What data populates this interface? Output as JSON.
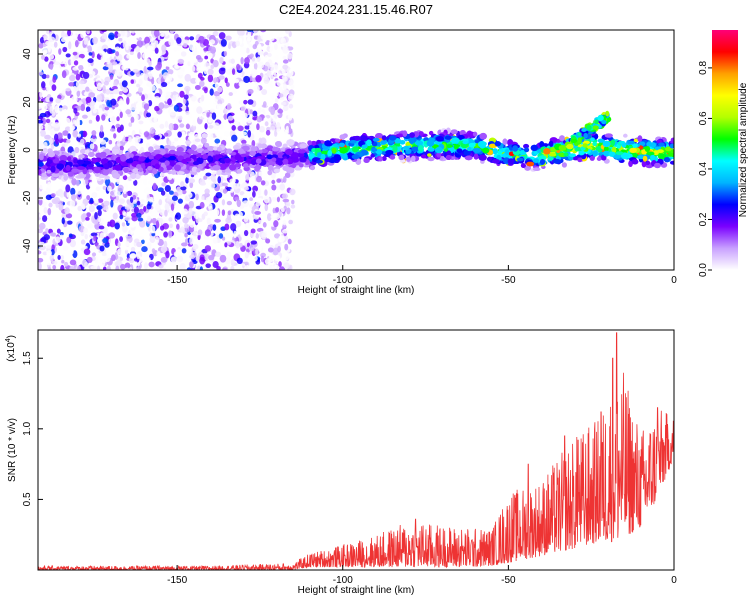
{
  "figure_title": "C2E4.2024.231.15.46.R07",
  "chart_data": [
    {
      "type": "heatmap",
      "title": "C2E4.2024.231.15.46.R07",
      "xlabel": "Height of straight line (km)",
      "ylabel": "Frequency (Hz)",
      "xlim": [
        -192,
        0
      ],
      "ylim": [
        -50,
        50
      ],
      "x_ticks": [
        -150,
        -100,
        -50,
        0
      ],
      "y_ticks": [
        40,
        20,
        0,
        -20,
        -40
      ],
      "x_tick_labels": [
        "-150",
        "-100",
        "-50",
        "0"
      ],
      "y_tick_labels": [
        "40",
        "20",
        "0",
        "-20",
        "-40"
      ],
      "colorbar": {
        "label": "Normalized spectral amplitude",
        "range": [
          0,
          0.95
        ],
        "ticks": [
          0.0,
          0.2,
          0.4,
          0.6,
          0.8
        ],
        "tick_labels": [
          "0.0",
          "0.2",
          "0.4",
          "0.6",
          "0.8"
        ],
        "colors": [
          "#ffffff",
          "#c8a0ff",
          "#7a00ff",
          "#0000ff",
          "#00b4ff",
          "#00ffff",
          "#00ff00",
          "#b4ff00",
          "#ffff00",
          "#ffa000",
          "#ff0000",
          "#ff0078"
        ]
      },
      "ridge": [
        {
          "x": -190,
          "f": -6
        },
        {
          "x": -175,
          "f": -6
        },
        {
          "x": -160,
          "f": -5
        },
        {
          "x": -150,
          "f": -4
        },
        {
          "x": -140,
          "f": -4
        },
        {
          "x": -130,
          "f": -4
        },
        {
          "x": -120,
          "f": -3
        },
        {
          "x": -110,
          "f": -2
        },
        {
          "x": -100,
          "f": 0
        },
        {
          "x": -90,
          "f": 1
        },
        {
          "x": -80,
          "f": 2
        },
        {
          "x": -70,
          "f": 2
        },
        {
          "x": -60,
          "f": 2
        },
        {
          "x": -50,
          "f": -2
        },
        {
          "x": -40,
          "f": -2
        },
        {
          "x": -32,
          "f": 0
        },
        {
          "x": -25,
          "f": 2
        },
        {
          "x": -15,
          "f": 0
        },
        {
          "x": -5,
          "f": -1
        },
        {
          "x": 0,
          "f": -1
        }
      ],
      "noise_region": {
        "x_min": -192,
        "x_max": -115,
        "f_min": -50,
        "f_max": 50
      }
    },
    {
      "type": "line",
      "xlabel": "Height of straight line (km)",
      "ylabel": "SNR (10 * v/v)",
      "y_multiplier": "(x10",
      "y_multiplier_exp": "4",
      "y_multiplier_close": ")",
      "xlim": [
        -192,
        0
      ],
      "ylim": [
        0,
        1.7
      ],
      "x_ticks": [
        -150,
        -100,
        -50,
        0
      ],
      "y_ticks": [
        0.5,
        1.0,
        1.5
      ],
      "x_tick_labels": [
        "-150",
        "-100",
        "-50",
        "0"
      ],
      "y_tick_labels": [
        "0.5",
        "1.0",
        "1.5"
      ],
      "color": "#ee3333",
      "envelope": [
        {
          "x": -192,
          "lo": 0.0,
          "hi": 0.03
        },
        {
          "x": -140,
          "lo": 0.0,
          "hi": 0.03
        },
        {
          "x": -115,
          "lo": 0.0,
          "hi": 0.05
        },
        {
          "x": -110,
          "lo": 0.02,
          "hi": 0.12
        },
        {
          "x": -100,
          "lo": 0.02,
          "hi": 0.18
        },
        {
          "x": -90,
          "lo": 0.02,
          "hi": 0.25
        },
        {
          "x": -80,
          "lo": 0.02,
          "hi": 0.35
        },
        {
          "x": -70,
          "lo": 0.02,
          "hi": 0.32
        },
        {
          "x": -60,
          "lo": 0.02,
          "hi": 0.3
        },
        {
          "x": -55,
          "lo": 0.03,
          "hi": 0.3
        },
        {
          "x": -50,
          "lo": 0.05,
          "hi": 0.55
        },
        {
          "x": -40,
          "lo": 0.1,
          "hi": 0.65
        },
        {
          "x": -30,
          "lo": 0.15,
          "hi": 0.95
        },
        {
          "x": -22,
          "lo": 0.2,
          "hi": 1.1
        },
        {
          "x": -17,
          "lo": 0.2,
          "hi": 1.55
        },
        {
          "x": -10,
          "lo": 0.3,
          "hi": 1.0
        },
        {
          "x": -5,
          "lo": 0.5,
          "hi": 1.15
        },
        {
          "x": 0,
          "lo": 0.8,
          "hi": 1.1
        }
      ],
      "peaks": [
        {
          "x": -17.3,
          "y": 1.68
        },
        {
          "x": -18.5,
          "y": 1.5
        },
        {
          "x": -33,
          "y": 0.95
        },
        {
          "x": -29,
          "y": 0.92
        },
        {
          "x": -22,
          "y": 1.12
        },
        {
          "x": -5,
          "y": 1.15
        },
        {
          "x": -44,
          "y": 0.75
        },
        {
          "x": -78,
          "y": 0.36
        }
      ]
    }
  ]
}
